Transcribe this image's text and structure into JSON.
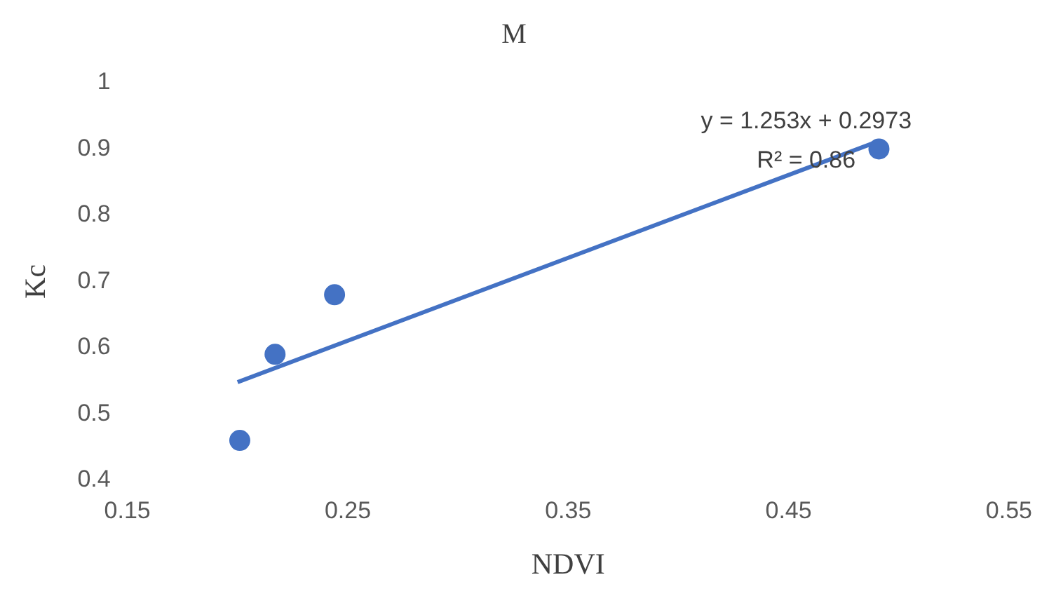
{
  "chart_data": {
    "type": "scatter",
    "title": "M",
    "xlabel": "NDVI",
    "ylabel": "Kc",
    "xlim": [
      0.15,
      0.55
    ],
    "xticks": [
      0.15,
      0.25,
      0.35,
      0.45,
      0.55
    ],
    "ylim": [
      0.4,
      1
    ],
    "yticks": [
      0.4,
      0.5,
      0.6,
      0.7,
      0.8,
      0.9,
      1
    ],
    "grid": false,
    "legend": false,
    "series": [
      {
        "color": "#4472c4",
        "marker": "circle",
        "x": [
          0.201,
          0.217,
          0.244,
          0.491
        ],
        "values": [
          0.46,
          0.59,
          0.68,
          0.9
        ]
      },
      {
        "type": "line",
        "color": "#4472c4",
        "marker": "none",
        "x": [
          0.2,
          0.491
        ],
        "values": [
          0.548,
          0.912
        ]
      }
    ],
    "annotations": [
      "y = 1.253x + 0.2973",
      "R² = 0.86"
    ]
  }
}
